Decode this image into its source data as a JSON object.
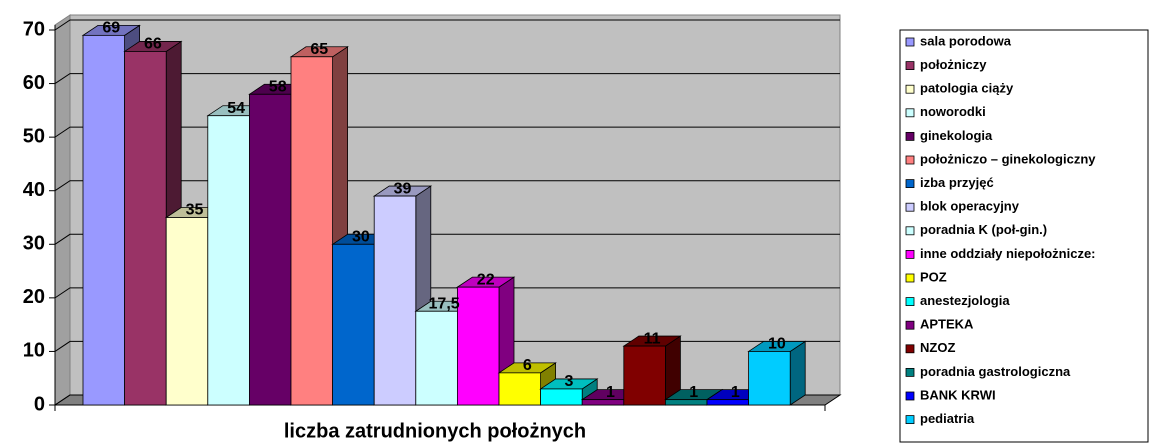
{
  "chart_data": {
    "type": "bar3d",
    "categories": [
      "liczba zatrudnionych położnych"
    ],
    "series": [
      {
        "name": "sala porodowa",
        "color": "#9999FF",
        "values": [
          69
        ]
      },
      {
        "name": "położniczy",
        "color": "#993366",
        "values": [
          66
        ]
      },
      {
        "name": "patologia ciąży",
        "color": "#FFFFCC",
        "values": [
          35
        ]
      },
      {
        "name": "noworodki",
        "color": "#CCFFFF",
        "values": [
          54
        ]
      },
      {
        "name": "ginekologia",
        "color": "#660066",
        "values": [
          58
        ]
      },
      {
        "name": "położniczo – ginekologiczny",
        "color": "#FF8080",
        "values": [
          65
        ]
      },
      {
        "name": "izba przyjęć",
        "color": "#0066CC",
        "values": [
          30
        ]
      },
      {
        "name": "blok operacyjny",
        "color": "#CCCCFF",
        "values": [
          39
        ]
      },
      {
        "name": "poradnia K (poł-gin.)",
        "color": "#CCFFFF",
        "values": [
          17.5
        ],
        "value_labels": [
          "17,5"
        ]
      },
      {
        "name": "inne oddziały niepołożnicze:",
        "color": "#FF00FF",
        "values": [
          22
        ]
      },
      {
        "name": "POZ",
        "color": "#FFFF00",
        "values": [
          6
        ]
      },
      {
        "name": "anestezjologia",
        "color": "#00FFFF",
        "values": [
          3
        ]
      },
      {
        "name": "APTEKA",
        "color": "#800080",
        "values": [
          1
        ]
      },
      {
        "name": "NZOZ",
        "color": "#800000",
        "values": [
          11
        ]
      },
      {
        "name": "poradnia gastrologiczna",
        "color": "#008080",
        "values": [
          1
        ]
      },
      {
        "name": "BANK KRWI",
        "color": "#0000FF",
        "values": [
          1
        ]
      },
      {
        "name": "pediatria",
        "color": "#00CCFF",
        "values": [
          10
        ]
      }
    ],
    "ylim": [
      0,
      70
    ],
    "yticks": [
      0,
      10,
      20,
      30,
      40,
      50,
      60,
      70
    ],
    "grid": true,
    "legend": "right"
  }
}
